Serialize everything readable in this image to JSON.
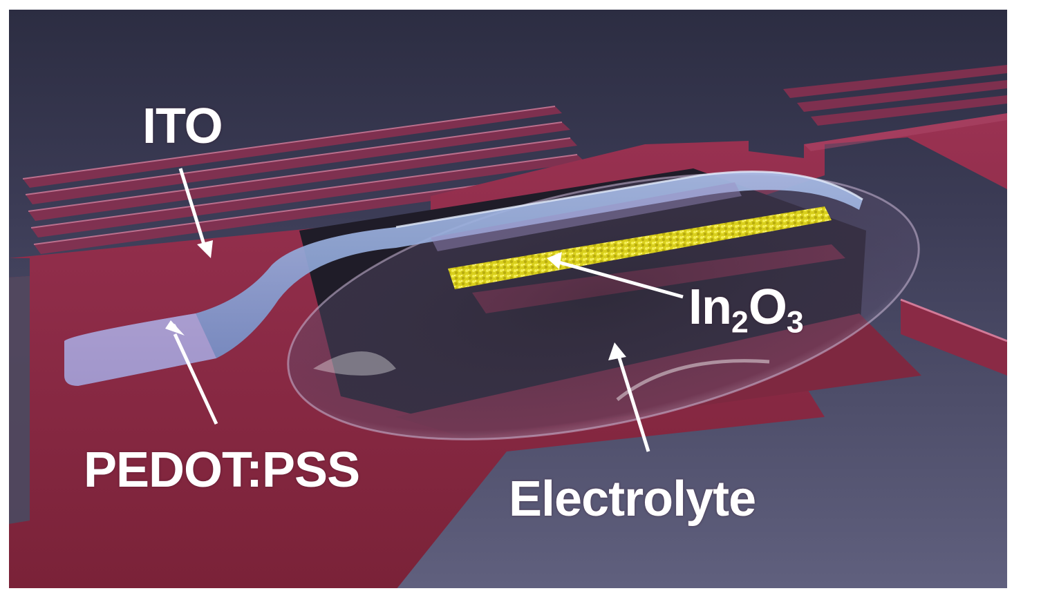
{
  "figure": {
    "labels": {
      "ito": "ITO",
      "pedot": "PEDOT:PSS",
      "in2o3": {
        "main": "In",
        "sub1": "2",
        "mid": "O",
        "sub2": "3"
      },
      "electrolyte": "Electrolyte"
    },
    "colors": {
      "background_top": "#2e2f45",
      "background_bottom": "#5a5a78",
      "ito_red": "#8a2a45",
      "ito_highlight": "#c86080",
      "pedot_blue": "#8aa6d8",
      "in2o3_yellow": "#e6dc2a",
      "electrolyte_clear": "#c9c4dc",
      "arrow_white": "#ffffff"
    }
  }
}
